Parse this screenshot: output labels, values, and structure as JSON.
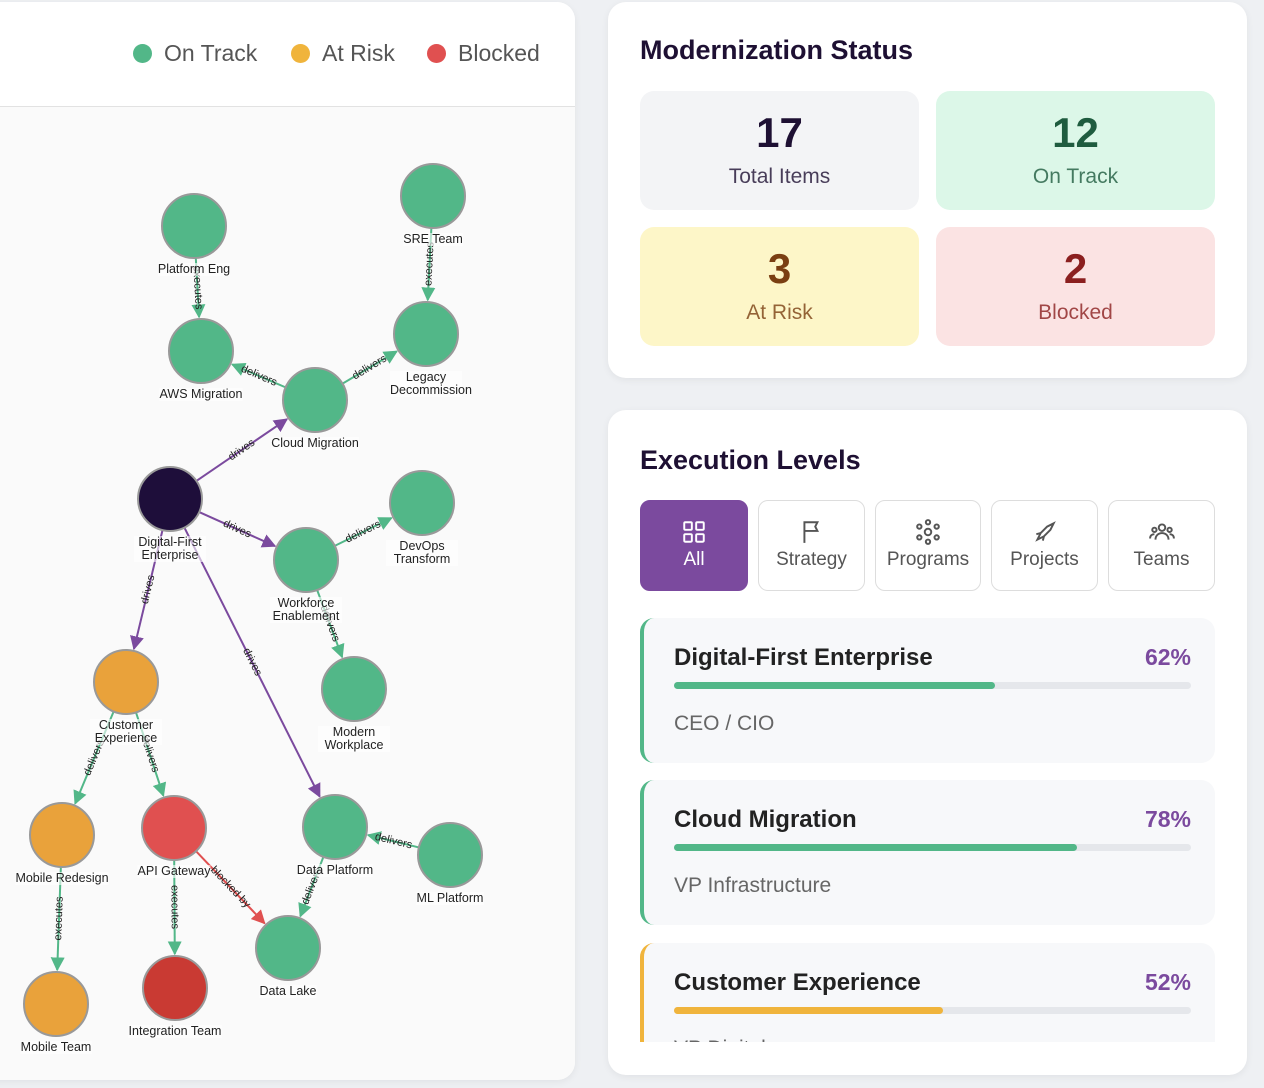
{
  "legend": [
    {
      "label": "On Track",
      "color": "#52b788"
    },
    {
      "label": "At Risk",
      "color": "#f0b43c"
    },
    {
      "label": "Blocked",
      "color": "#e05050"
    }
  ],
  "graph": {
    "nodes": [
      {
        "label": "Digital-First Enterprise",
        "color": "#1e0e3a"
      },
      {
        "label": "Cloud Migration",
        "color": "#52b788"
      },
      {
        "label": "AWS Migration",
        "color": "#52b788"
      },
      {
        "label": "Platform Eng",
        "color": "#52b788"
      },
      {
        "label": "Legacy Decommission",
        "color": "#52b788"
      },
      {
        "label": "SRE Team",
        "color": "#52b788"
      },
      {
        "label": "Workforce Enablement",
        "color": "#52b788"
      },
      {
        "label": "DevOps Transform",
        "color": "#52b788"
      },
      {
        "label": "Modern Workplace",
        "color": "#52b788"
      },
      {
        "label": "Customer Experience",
        "color": "#e9a23b"
      },
      {
        "label": "Mobile Redesign",
        "color": "#e9a23b"
      },
      {
        "label": "API Gateway",
        "color": "#e05050"
      },
      {
        "label": "Data Platform",
        "color": "#52b788"
      },
      {
        "label": "ML Platform",
        "color": "#52b788"
      },
      {
        "label": "Data Lake",
        "color": "#52b788"
      },
      {
        "label": "Mobile Team",
        "color": "#e9a23b"
      },
      {
        "label": "Integration Team",
        "color": "#c93a33"
      }
    ],
    "edges": [
      {
        "from": 0,
        "to": 1,
        "label": "drives",
        "color": "#7b4a9e"
      },
      {
        "from": 0,
        "to": 6,
        "label": "drives",
        "color": "#7b4a9e"
      },
      {
        "from": 0,
        "to": 9,
        "label": "drives",
        "color": "#7b4a9e"
      },
      {
        "from": 0,
        "to": 12,
        "label": "drives",
        "color": "#7b4a9e"
      },
      {
        "from": 1,
        "to": 2,
        "label": "delivers",
        "color": "#52b788"
      },
      {
        "from": 1,
        "to": 4,
        "label": "delivers",
        "color": "#52b788"
      },
      {
        "from": 3,
        "to": 2,
        "label": "executes",
        "color": "#52b788"
      },
      {
        "from": 5,
        "to": 4,
        "label": "executes",
        "color": "#52b788"
      },
      {
        "from": 6,
        "to": 7,
        "label": "delivers",
        "color": "#52b788"
      },
      {
        "from": 6,
        "to": 8,
        "label": "delivers",
        "color": "#52b788"
      },
      {
        "from": 9,
        "to": 10,
        "label": "delivers",
        "color": "#52b788"
      },
      {
        "from": 9,
        "to": 11,
        "label": "delivers",
        "color": "#52b788"
      },
      {
        "from": 10,
        "to": 15,
        "label": "executes",
        "color": "#52b788"
      },
      {
        "from": 11,
        "to": 16,
        "label": "executes",
        "color": "#52b788"
      },
      {
        "from": 11,
        "to": 14,
        "label": "blocked by",
        "color": "#e05050"
      },
      {
        "from": 13,
        "to": 12,
        "label": "delivers",
        "color": "#52b788"
      },
      {
        "from": 12,
        "to": 14,
        "label": "delivers",
        "color": "#52b788"
      }
    ]
  },
  "status": {
    "title": "Modernization Status",
    "stats": [
      {
        "value": 17,
        "label": "Total Items",
        "bg": "#f3f4f6",
        "color": "#1e1033"
      },
      {
        "value": 12,
        "label": "On Track",
        "bg": "#dcf7e8",
        "color": "#1f5c3f"
      },
      {
        "value": 3,
        "label": "At Risk",
        "bg": "#fdf6c8",
        "color": "#7a3f12"
      },
      {
        "value": 2,
        "label": "Blocked",
        "bg": "#fbe3e3",
        "color": "#8b1f1f"
      }
    ]
  },
  "execution": {
    "title": "Execution Levels",
    "tabs": [
      "All",
      "Strategy",
      "Programs",
      "Projects",
      "Teams"
    ],
    "items": [
      {
        "name": "Digital-First Enterprise",
        "progress": 62,
        "progress_label": "62%",
        "owner": "CEO / CIO",
        "color": "#52b788"
      },
      {
        "name": "Cloud Migration",
        "progress": 78,
        "progress_label": "78%",
        "owner": "VP Infrastructure",
        "color": "#52b788"
      },
      {
        "name": "Customer Experience",
        "progress": 52,
        "progress_label": "52%",
        "owner": "VP Digital",
        "color": "#f0b43c"
      }
    ]
  }
}
